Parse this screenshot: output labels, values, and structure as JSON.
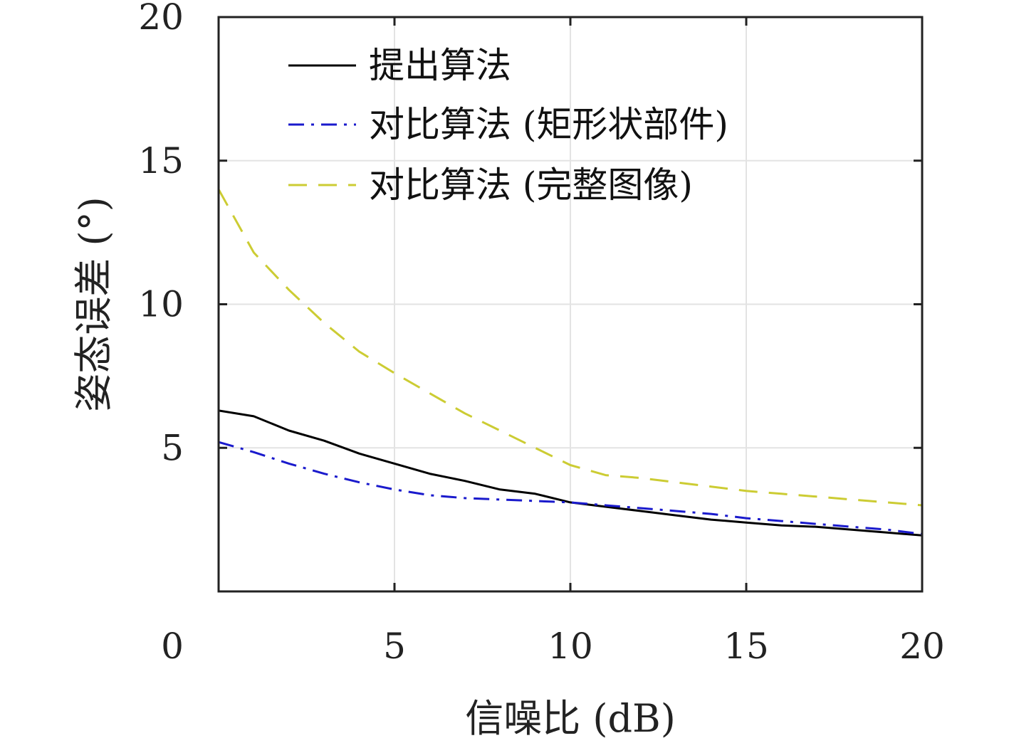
{
  "chart_data": {
    "type": "line",
    "xlabel": "信噪比 (dB)",
    "ylabel": "姿态误差 (°)",
    "xlim": [
      0,
      20
    ],
    "ylim": [
      0,
      20
    ],
    "xticks": [
      0,
      5,
      10,
      15,
      20
    ],
    "yticks": [
      5,
      10,
      15,
      20
    ],
    "x_tick_labels": [
      "0",
      "5",
      "10",
      "15",
      "20"
    ],
    "y_tick_labels": [
      "5",
      "10",
      "15",
      "20"
    ],
    "grid": true,
    "legend_position": "top-left",
    "series": [
      {
        "name": "提出算法",
        "color": "#000000",
        "dash": "solid",
        "x": [
          0,
          1,
          2,
          3,
          4,
          5,
          6,
          7,
          8,
          9,
          10,
          11,
          12,
          13,
          14,
          15,
          16,
          17,
          18,
          19,
          20
        ],
        "y": [
          6.3,
          6.1,
          5.6,
          5.25,
          4.8,
          4.45,
          4.1,
          3.85,
          3.55,
          3.4,
          3.1,
          2.95,
          2.8,
          2.65,
          2.5,
          2.4,
          2.3,
          2.25,
          2.15,
          2.05,
          1.95
        ]
      },
      {
        "name": "对比算法 (矩形状部件)",
        "color": "#1a1acc",
        "dash": "dashdot",
        "x": [
          0,
          1,
          2,
          3,
          4,
          5,
          6,
          7,
          8,
          9,
          10,
          11,
          12,
          13,
          14,
          15,
          16,
          17,
          18,
          19,
          20
        ],
        "y": [
          5.2,
          4.85,
          4.45,
          4.1,
          3.8,
          3.55,
          3.35,
          3.25,
          3.2,
          3.15,
          3.1,
          3.0,
          2.9,
          2.8,
          2.7,
          2.55,
          2.45,
          2.35,
          2.25,
          2.15,
          2.0
        ]
      },
      {
        "name": "对比算法 (完整图像)",
        "color": "#cccc33",
        "dash": "dashed",
        "x": [
          0,
          1,
          2,
          3,
          4,
          5,
          6,
          7,
          8,
          9,
          10,
          11,
          12,
          13,
          14,
          15,
          16,
          17,
          18,
          19,
          20
        ],
        "y": [
          14.0,
          11.8,
          10.5,
          9.35,
          8.35,
          7.6,
          6.9,
          6.2,
          5.6,
          5.0,
          4.4,
          4.05,
          3.95,
          3.8,
          3.65,
          3.5,
          3.4,
          3.3,
          3.2,
          3.1,
          3.0
        ]
      }
    ]
  }
}
